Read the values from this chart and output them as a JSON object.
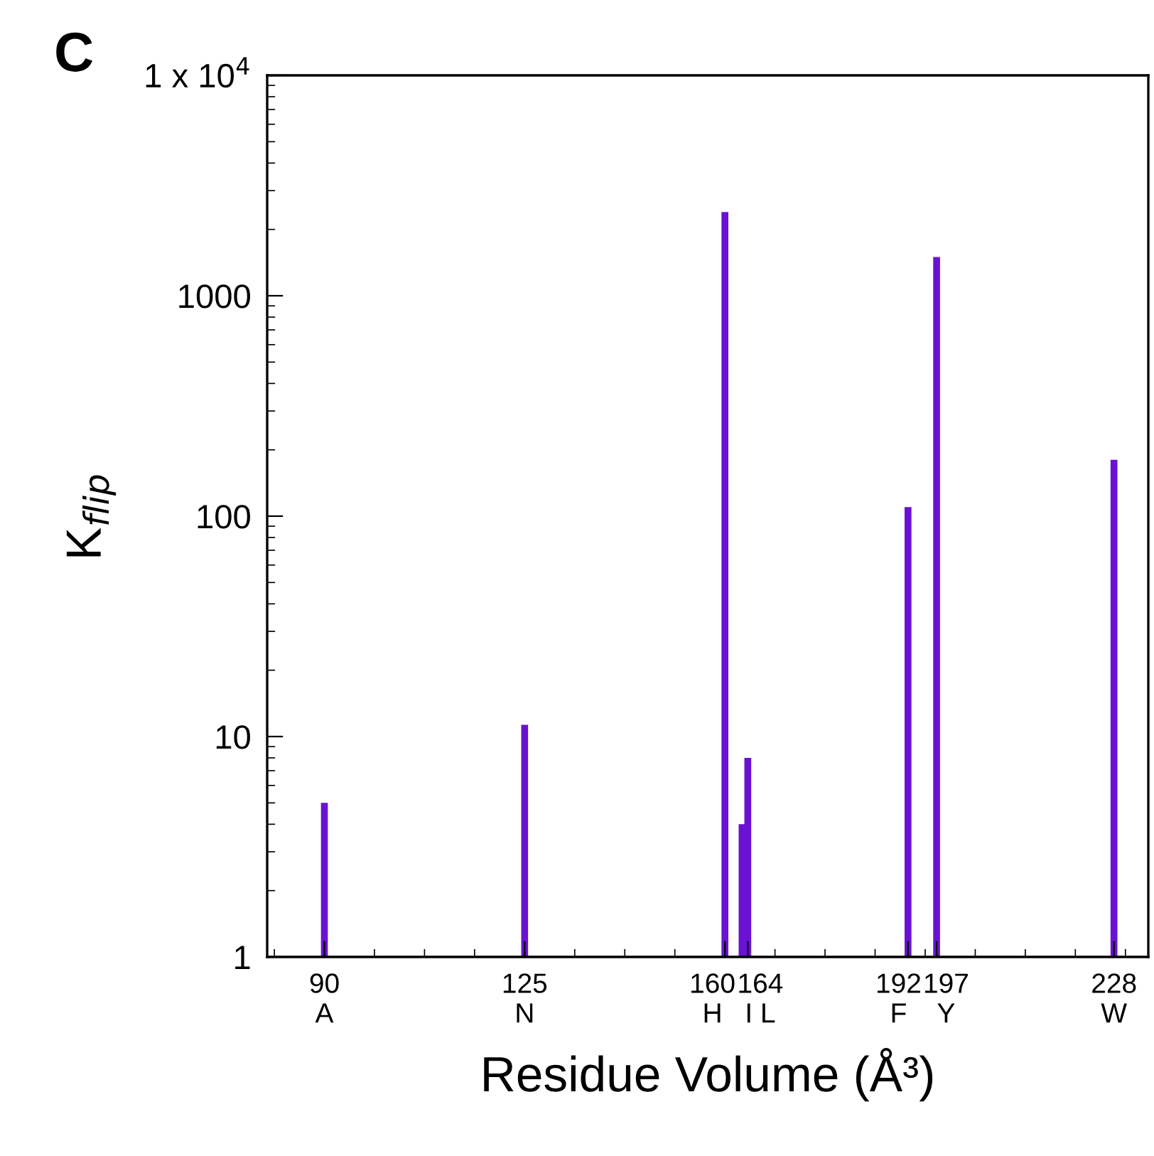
{
  "chart_data": {
    "type": "bar",
    "title": "C",
    "xlabel": "Residue Volume (Å³)",
    "ylabel": "K$_{flip}$",
    "x": [
      90,
      125,
      160,
      163,
      164,
      192,
      197,
      228
    ],
    "values": [
      5,
      11.3,
      2400,
      4,
      8,
      110,
      1500,
      180
    ],
    "color": "#6a12d4",
    "log": "y",
    "xlim": [
      80,
      234
    ],
    "xticks": [
      {
        "value": 90,
        "label": "90\nA"
      },
      {
        "value": 125,
        "label": "125\nN"
      },
      {
        "value": 160,
        "label": "160\nH"
      },
      {
        "value": 164,
        "label": "164\nI L"
      },
      {
        "value": 192,
        "label": "192\nF"
      },
      {
        "value": 197,
        "label": "197\nY"
      },
      {
        "value": 228,
        "label": "228\nW"
      }
    ],
    "ylim": [
      1,
      10000
    ],
    "yticks": [
      1,
      10,
      100,
      1000,
      {
        "value": 10000,
        "label": "1 x 10$^{4}$"
      }
    ],
    "grid": false,
    "legend": false
  }
}
